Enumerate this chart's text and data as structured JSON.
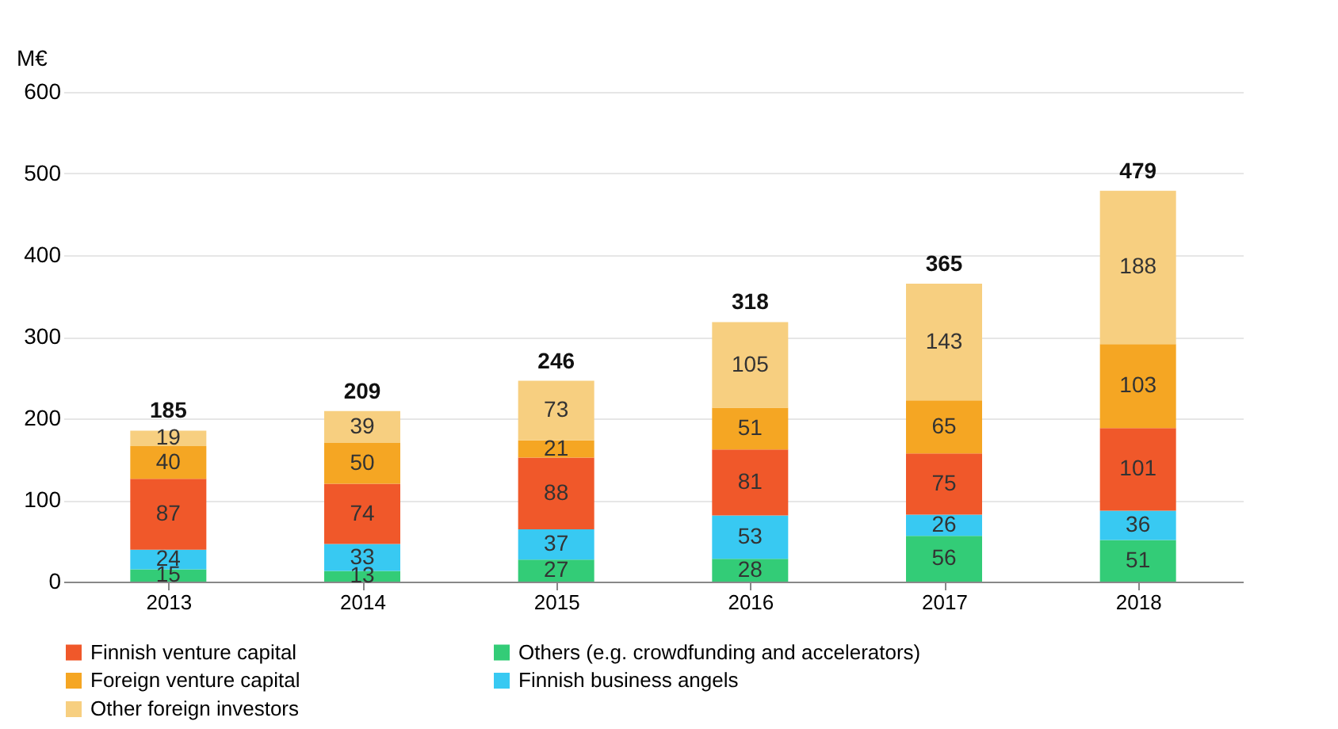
{
  "chart_data": {
    "type": "bar",
    "stacked": true,
    "ylabel": "M€",
    "categories": [
      "2013",
      "2014",
      "2015",
      "2016",
      "2017",
      "2018"
    ],
    "series": [
      {
        "name": "Others (e.g. crowdfunding and accelerators)",
        "color": "#33cc77",
        "values": [
          15,
          13,
          27,
          28,
          56,
          51
        ]
      },
      {
        "name": "Finnish business angels",
        "color": "#38c9f2",
        "values": [
          24,
          33,
          37,
          53,
          26,
          36
        ]
      },
      {
        "name": "Finnish venture capital",
        "color": "#f0582a",
        "values": [
          87,
          74,
          88,
          81,
          75,
          101
        ]
      },
      {
        "name": "Foreign venture capital",
        "color": "#f5a623",
        "values": [
          40,
          50,
          21,
          51,
          65,
          103
        ]
      },
      {
        "name": "Other foreign investors",
        "color": "#f7cf80",
        "values": [
          19,
          39,
          73,
          105,
          143,
          188
        ]
      }
    ],
    "totals": [
      "185",
      "209",
      "246",
      "318",
      "365",
      "479"
    ],
    "data_labels": true,
    "ylim": [
      0,
      600
    ],
    "yticks": [
      0,
      100,
      200,
      300,
      400,
      500,
      600
    ],
    "grid": "y",
    "legend": "bottom"
  }
}
